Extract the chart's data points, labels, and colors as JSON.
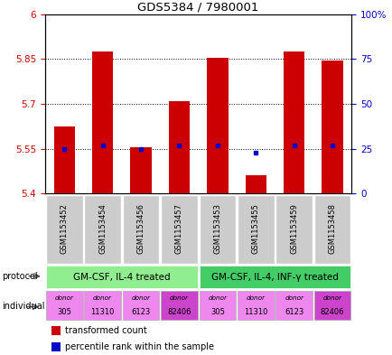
{
  "title": "GDS5384 / 7980001",
  "samples": [
    "GSM1153452",
    "GSM1153454",
    "GSM1153456",
    "GSM1153457",
    "GSM1153453",
    "GSM1153455",
    "GSM1153459",
    "GSM1153458"
  ],
  "red_values": [
    5.625,
    5.875,
    5.555,
    5.71,
    5.855,
    5.46,
    5.875,
    5.845
  ],
  "blue_values": [
    25,
    27,
    25,
    27,
    27,
    23,
    27,
    27
  ],
  "ymin": 5.4,
  "ymax": 6.0,
  "yticks": [
    5.4,
    5.55,
    5.7,
    5.85,
    6.0
  ],
  "ytick_labels": [
    "5.4",
    "5.55",
    "5.7",
    "5.85",
    "6"
  ],
  "y2min": 0,
  "y2max": 100,
  "y2ticks": [
    0,
    25,
    50,
    75,
    100
  ],
  "y2tick_labels": [
    "0",
    "25",
    "50",
    "75",
    "100%"
  ],
  "protocol_groups": [
    {
      "label": "GM-CSF, IL-4 treated",
      "start": 0,
      "end": 3,
      "color": "#90ee90"
    },
    {
      "label": "GM-CSF, IL-4, INF-γ treated",
      "start": 4,
      "end": 7,
      "color": "#44cc66"
    }
  ],
  "donors": [
    "305",
    "11310",
    "6123",
    "82406",
    "305",
    "11310",
    "6123",
    "82406"
  ],
  "donor_colors": [
    "#ee88ee",
    "#ee88ee",
    "#ee88ee",
    "#cc44cc",
    "#ee88ee",
    "#ee88ee",
    "#ee88ee",
    "#cc44cc"
  ],
  "bar_color": "#cc0000",
  "dot_color": "#0000cc",
  "background_color": "#ffffff",
  "tick_color_left": "#cc0000",
  "tick_color_right": "#0000cc",
  "grey_label_bg": "#cccccc",
  "arrow_color": "#555555"
}
